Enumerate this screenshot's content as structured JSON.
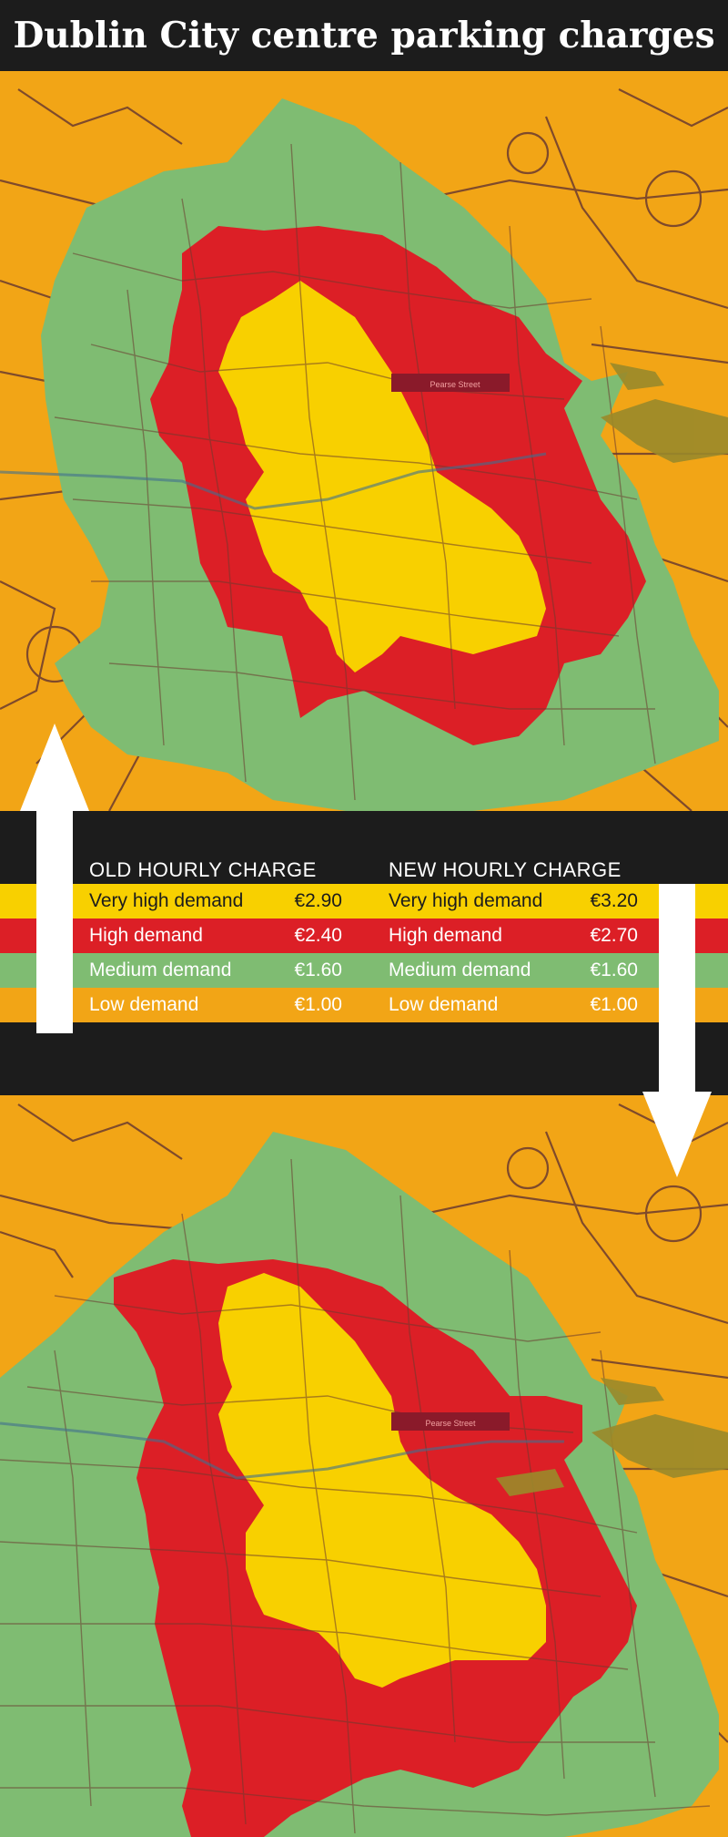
{
  "title": "Dublin City centre parking charges",
  "colors": {
    "very_high": "#f8d000",
    "high": "#dc1f26",
    "medium": "#7fbc72",
    "low": "#f2a516",
    "background": "#1c1c1c",
    "street": "#6b3b2f",
    "dock": "#9a8a2a"
  },
  "legend": {
    "old": {
      "heading": "OLD HOURLY CHARGE",
      "rows": [
        {
          "label": "Very high demand",
          "value": "€2.90",
          "level": "very_high"
        },
        {
          "label": "High demand",
          "value": "€2.40",
          "level": "high"
        },
        {
          "label": "Medium demand",
          "value": "€1.60",
          "level": "medium"
        },
        {
          "label": "Low demand",
          "value": "€1.00",
          "level": "low"
        }
      ]
    },
    "new": {
      "heading": "NEW  HOURLY CHARGE",
      "rows": [
        {
          "label": "Very high demand",
          "value": "€3.20",
          "level": "very_high"
        },
        {
          "label": "High demand",
          "value": "€2.70",
          "level": "high"
        },
        {
          "label": "Medium demand",
          "value": "€1.60",
          "level": "medium"
        },
        {
          "label": "Low demand",
          "value": "€1.00",
          "level": "low"
        }
      ]
    }
  },
  "maps": {
    "old": {
      "street_label": "Pearse Street"
    },
    "new": {
      "street_label": "Pearse Street"
    }
  },
  "arrows": [
    {
      "name": "arrow-up-icon",
      "direction": "up"
    },
    {
      "name": "arrow-down-icon",
      "direction": "down"
    }
  ]
}
